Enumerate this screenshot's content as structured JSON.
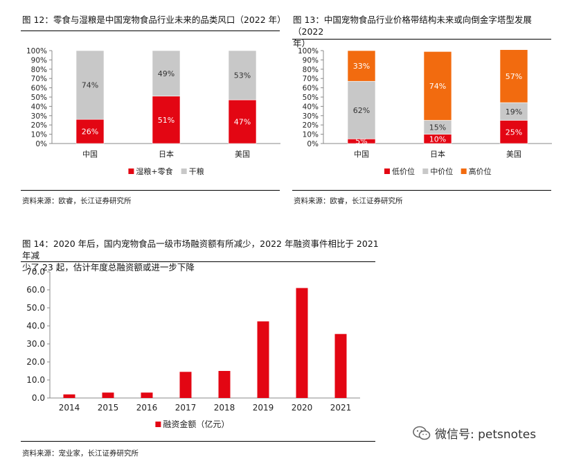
{
  "fig12": {
    "title": "图 12：零食与湿粮是中国宠物食品行业未来的品类风口（2022 年）",
    "source": "资料来源：欧睿，长江证券研究所"
  },
  "fig13": {
    "title_line1": "图 13：中国宠物食品行业价格带结构未来或向倒金字塔型发展（2022",
    "title_line2": "年）",
    "source": "资料来源：欧睿，长江证券研究所"
  },
  "fig14": {
    "title_line1": "图 14：2020 年后，国内宠物食品一级市场融资额有所减少，2022 年融资事件相比于 2021 年减",
    "title_line2": "少了 23 起，估计年度总融资额或进一步下降",
    "source": "资料来源：宠业家，长江证券研究所"
  },
  "watermark": {
    "text": "微信号: petsnotes",
    "icon": "wechat-icon"
  },
  "chart_data": [
    {
      "type": "bar",
      "stacked": true,
      "categories": [
        "中国",
        "日本",
        "美国"
      ],
      "series": [
        {
          "name": "湿粮+零食",
          "values": [
            26,
            51,
            47
          ],
          "labels": [
            "26%",
            "51%",
            "47%"
          ],
          "color": "#e30613"
        },
        {
          "name": "干粮",
          "values": [
            74,
            49,
            53
          ],
          "labels": [
            "74%",
            "49%",
            "53%"
          ],
          "color": "#c8c8c8"
        }
      ],
      "yticks": [
        "0%",
        "10%",
        "20%",
        "30%",
        "40%",
        "50%",
        "60%",
        "70%",
        "80%",
        "90%",
        "100%"
      ],
      "ylim": [
        0,
        100
      ],
      "legend_position": "bottom"
    },
    {
      "type": "bar",
      "stacked": true,
      "categories": [
        "中国",
        "日本",
        "美国"
      ],
      "series": [
        {
          "name": "低价位",
          "values": [
            5,
            10,
            25
          ],
          "labels": [
            "5%",
            "10%",
            "25%"
          ],
          "color": "#e30613"
        },
        {
          "name": "中价位",
          "values": [
            62,
            15,
            19
          ],
          "labels": [
            "62%",
            "15%",
            "19%"
          ],
          "color": "#c8c8c8"
        },
        {
          "name": "高价位",
          "values": [
            33,
            74,
            57
          ],
          "labels": [
            "33%",
            "74%",
            "57%"
          ],
          "color": "#f26b0f"
        }
      ],
      "yticks": [
        "0%",
        "10%",
        "20%",
        "30%",
        "40%",
        "50%",
        "60%",
        "70%",
        "80%",
        "90%",
        "100%"
      ],
      "ylim": [
        0,
        100
      ],
      "legend_position": "bottom"
    },
    {
      "type": "bar",
      "categories": [
        "2014",
        "2015",
        "2016",
        "2017",
        "2018",
        "2019",
        "2020",
        "2021"
      ],
      "series": [
        {
          "name": "融资金额（亿元）",
          "values": [
            2.0,
            3.0,
            3.0,
            14.5,
            15.0,
            42.5,
            61.0,
            35.5
          ],
          "color": "#e30613"
        }
      ],
      "yticks": [
        "0.0",
        "10.0",
        "20.0",
        "30.0",
        "40.0",
        "50.0",
        "60.0",
        "70.0"
      ],
      "ylim": [
        0,
        70
      ],
      "legend_position": "bottom"
    }
  ]
}
